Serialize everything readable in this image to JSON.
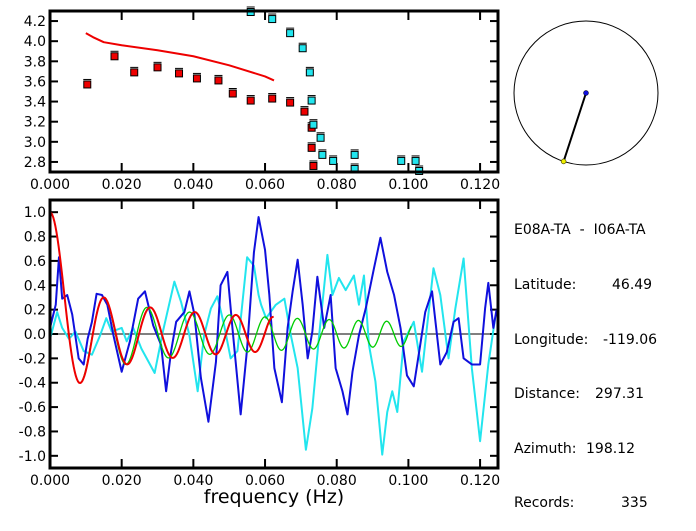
{
  "info": {
    "title": "E08A-TA  -  I06A-TA",
    "rows": [
      {
        "label": "Latitude:",
        "value": "46.49"
      },
      {
        "label": "Longitude:",
        "value": "-119.06"
      },
      {
        "label": "Distance:",
        "value": "297.31"
      },
      {
        "label": "Azimuth:",
        "value": "198.12"
      },
      {
        "label": "Records:",
        "value": "335"
      }
    ]
  },
  "colors": {
    "red": "#ee0000",
    "cyan": "#22e5ee",
    "blue": "#1010dd",
    "green": "#00cc00",
    "yellow": "#eeee00"
  },
  "chart_data": [
    {
      "type": "scatter",
      "name": "dispersion",
      "xlim": [
        0,
        0.125
      ],
      "ylim": [
        2.7,
        4.3
      ],
      "xticks": [
        "0.000",
        "0.020",
        "0.040",
        "0.060",
        "0.080",
        "0.100",
        "0.120"
      ],
      "yticks": [
        "2.8",
        "3.0",
        "3.2",
        "3.4",
        "3.6",
        "3.8",
        "4.0",
        "4.2"
      ],
      "red_curve": {
        "x": [
          0.01,
          0.012,
          0.015,
          0.02,
          0.03,
          0.04,
          0.05,
          0.06,
          0.0625
        ],
        "y": [
          4.08,
          4.04,
          3.99,
          3.96,
          3.91,
          3.85,
          3.76,
          3.65,
          3.61
        ]
      },
      "red_points": {
        "x": [
          0.0104,
          0.018,
          0.0235,
          0.03,
          0.036,
          0.041,
          0.047,
          0.051,
          0.056,
          0.062,
          0.067,
          0.071,
          0.073,
          0.073,
          0.0735
        ],
        "y": [
          3.57,
          3.85,
          3.69,
          3.74,
          3.68,
          3.63,
          3.61,
          3.48,
          3.41,
          3.43,
          3.39,
          3.3,
          3.14,
          2.94,
          2.76
        ]
      },
      "cyan_points": {
        "x": [
          0.056,
          0.062,
          0.067,
          0.0705,
          0.0725,
          0.073,
          0.0735,
          0.0755,
          0.076,
          0.079,
          0.085,
          0.085,
          0.098,
          0.102,
          0.103
        ],
        "y": [
          4.29,
          4.22,
          4.08,
          3.93,
          3.69,
          3.41,
          3.17,
          3.04,
          2.87,
          2.81,
          2.87,
          2.73,
          2.81,
          2.81,
          2.71
        ]
      }
    },
    {
      "type": "line",
      "name": "correlation",
      "xlabel": "frequency (Hz)",
      "xlim": [
        0,
        0.125
      ],
      "ylim": [
        -1.1,
        1.1
      ],
      "xticks": [
        "0.000",
        "0.020",
        "0.040",
        "0.060",
        "0.080",
        "0.100",
        "0.120"
      ],
      "yticks": [
        "-1.0",
        "-0.8",
        "-0.6",
        "-0.4",
        "-0.2",
        "0.0",
        "0.2",
        "0.4",
        "0.6",
        "0.8",
        "1.0"
      ],
      "distance_km": 297.31,
      "red_model_velocity": {
        "f": [
          0,
          0.01,
          0.015,
          0.02,
          0.03,
          0.04,
          0.05,
          0.06,
          0.0625
        ],
        "c": [
          4.08,
          4.08,
          3.99,
          3.96,
          3.91,
          3.85,
          3.76,
          3.65,
          3.61
        ]
      },
      "green_model_velocity": {
        "f": [
          0.009,
          0.015,
          0.027,
          0.039,
          0.05,
          0.06,
          0.069,
          0.078,
          0.086,
          0.094,
          0.101
        ],
        "c": [
          4.05,
          3.99,
          3.79,
          3.71,
          3.61,
          3.48,
          3.35,
          3.25,
          3.15,
          3.06,
          3.0
        ]
      },
      "blue": {
        "x": [
          0,
          0.0016,
          0.0025,
          0.0034,
          0.0048,
          0.0062,
          0.008,
          0.0094,
          0.0105,
          0.0117,
          0.013,
          0.0145,
          0.016,
          0.0177,
          0.02,
          0.0223,
          0.0246,
          0.0265,
          0.0288,
          0.031,
          0.0324,
          0.0338,
          0.0352,
          0.0375,
          0.0389,
          0.0403,
          0.0421,
          0.0442,
          0.0463,
          0.0476,
          0.0495,
          0.0509,
          0.0532,
          0.055,
          0.0569,
          0.0582,
          0.06,
          0.0612,
          0.0626,
          0.0647,
          0.0663,
          0.0677,
          0.0691,
          0.0705,
          0.0719,
          0.0732,
          0.0746,
          0.0765,
          0.0783,
          0.0797,
          0.0816,
          0.083,
          0.0844,
          0.0862,
          0.0881,
          0.0904,
          0.0922,
          0.0941,
          0.096,
          0.0978,
          0.0996,
          0.1015,
          0.1033,
          0.1047,
          0.1066,
          0.1089,
          0.1107,
          0.1126,
          0.114,
          0.1154,
          0.1177,
          0.12,
          0.1214,
          0.1223,
          0.1237,
          0.1246
        ],
        "y": [
          0.05,
          0.24,
          0.63,
          0.29,
          0.32,
          0.16,
          -0.2,
          -0.25,
          -0.04,
          0.1,
          0.33,
          0.32,
          0.24,
          -0.01,
          -0.31,
          -0.06,
          0.29,
          0.35,
          0.07,
          -0.09,
          -0.47,
          -0.14,
          0.1,
          0.18,
          0.35,
          0.16,
          -0.36,
          -0.72,
          -0.23,
          0.4,
          0.51,
          0.05,
          -0.66,
          -0.12,
          0.67,
          0.96,
          0.69,
          0.32,
          -0.28,
          -0.56,
          0.05,
          0.35,
          0.61,
          0.24,
          -0.2,
          0.02,
          0.47,
          0.05,
          0.32,
          -0.28,
          -0.47,
          -0.66,
          -0.31,
          -0.01,
          0.21,
          0.54,
          0.79,
          0.51,
          0.32,
          0.05,
          -0.34,
          -0.43,
          -0.09,
          0.18,
          0.35,
          -0.25,
          -0.15,
          0.1,
          0.13,
          -0.2,
          -0.25,
          -0.25,
          0.21,
          0.42,
          0.05,
          0.2
        ]
      },
      "cyan": {
        "x": [
          0,
          0.002,
          0.0034,
          0.0053,
          0.0071,
          0.0094,
          0.0117,
          0.014,
          0.0157,
          0.0172,
          0.02,
          0.0214,
          0.0232,
          0.0255,
          0.0292,
          0.0315,
          0.0347,
          0.0366,
          0.0389,
          0.0412,
          0.043,
          0.0449,
          0.0467,
          0.0486,
          0.0504,
          0.0523,
          0.055,
          0.0569,
          0.0582,
          0.0589,
          0.0603,
          0.063,
          0.0654,
          0.0672,
          0.0691,
          0.0714,
          0.0732,
          0.075,
          0.0774,
          0.0788,
          0.0806,
          0.0825,
          0.0848,
          0.0862,
          0.0876,
          0.089,
          0.0908,
          0.0927,
          0.0941,
          0.0955,
          0.0969,
          0.0987,
          0.1015,
          0.1038,
          0.107,
          0.1089,
          0.1112,
          0.1131,
          0.1154,
          0.1177,
          0.12,
          0.1223,
          0.1242
        ],
        "y": [
          -0.04,
          0.18,
          0.05,
          -0.04,
          0.02,
          -0.14,
          -0.17,
          -0.01,
          0.13,
          0.02,
          0.05,
          -0.06,
          0.05,
          -0.12,
          -0.32,
          0.02,
          0.43,
          0.26,
          -0.01,
          -0.47,
          -0.01,
          0.21,
          0.31,
          0.07,
          -0.2,
          -0.14,
          0.63,
          0.56,
          0.32,
          0.24,
          0.13,
          0.24,
          0.29,
          -0.01,
          -0.28,
          -0.95,
          -0.61,
          -0.04,
          0.65,
          0.32,
          0.46,
          0.36,
          0.48,
          0.24,
          0.48,
          -0.09,
          -0.39,
          -0.99,
          -0.64,
          -0.47,
          -0.64,
          -0.06,
          0.1,
          -0.31,
          0.54,
          0.32,
          -0.2,
          0.21,
          0.62,
          -0.28,
          -0.88,
          -0.25,
          0.13
        ]
      }
    }
  ],
  "azimuth_plot": {
    "azimuth_deg": 198.12
  }
}
